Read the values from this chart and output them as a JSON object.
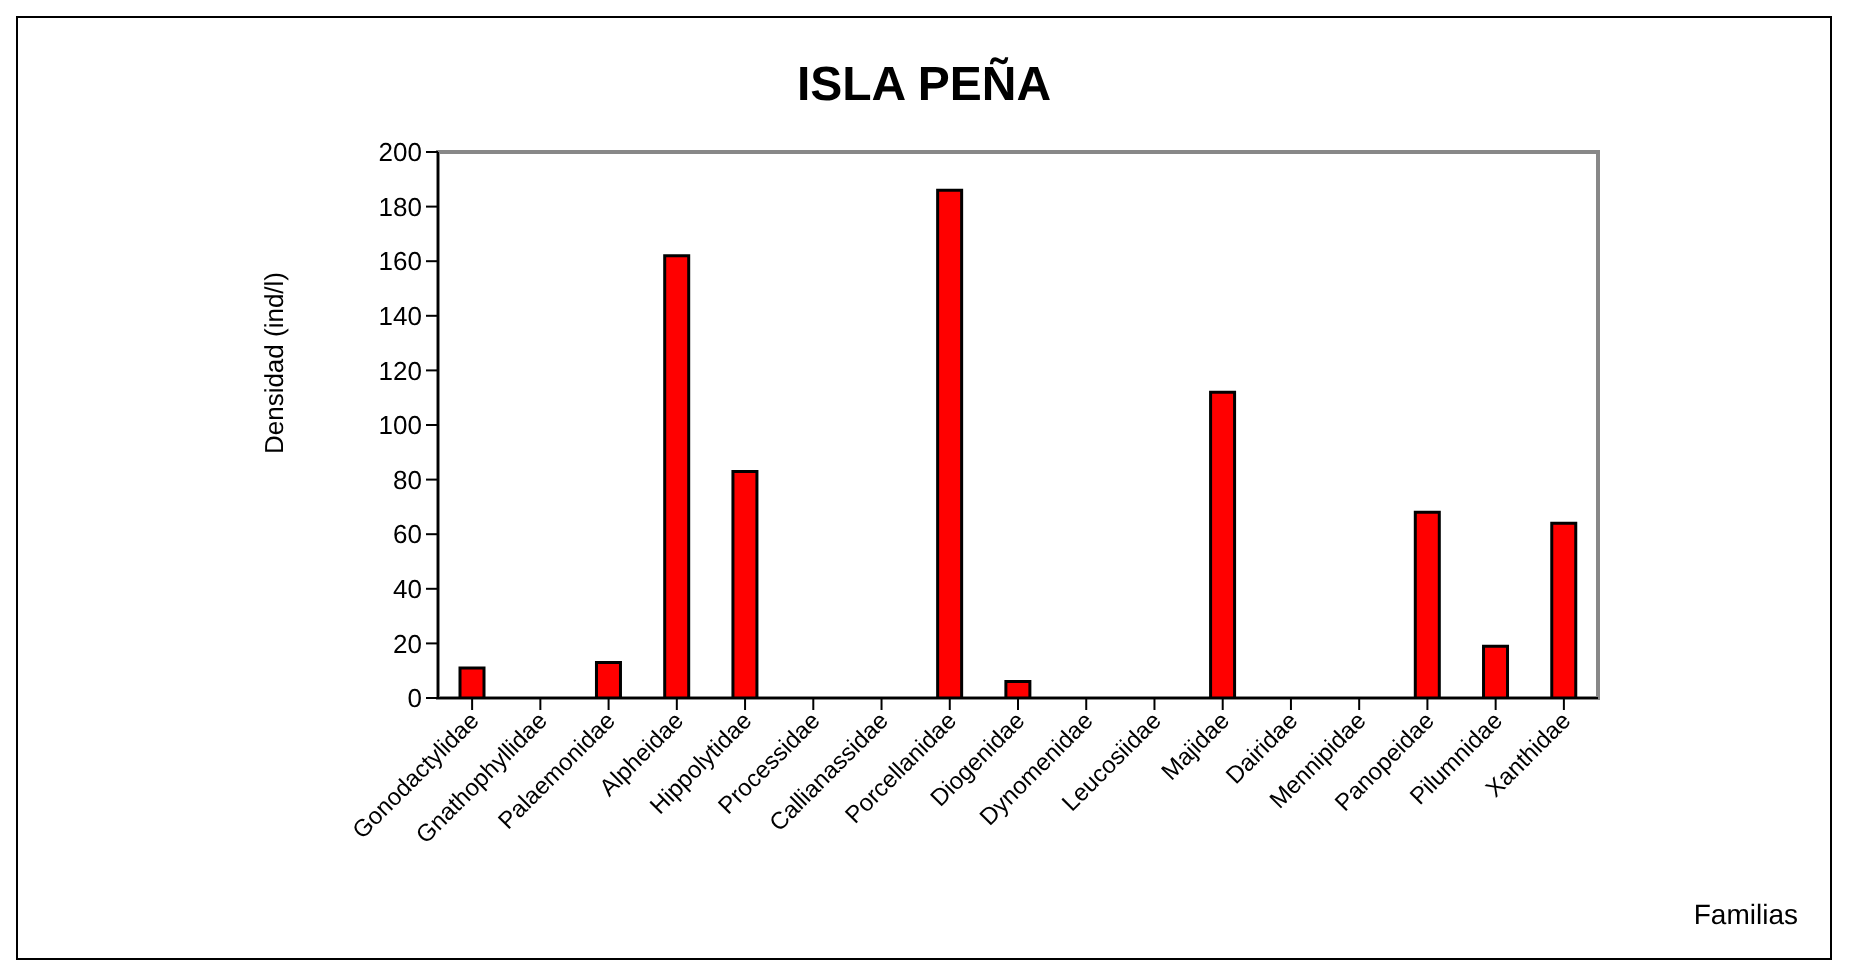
{
  "chart_data": {
    "type": "bar",
    "title": "ISLA PEÑA",
    "xlabel": "Familias",
    "ylabel": "Densidad (ind/l)",
    "categories": [
      "Gonodactylidae",
      "Gnathophyllidae",
      "Palaemonidae",
      "Alpheidae",
      "Hippolytidae",
      "Processidae",
      "Callianassidae",
      "Porcellanidae",
      "Diogenidae",
      "Dynomenidae",
      "Leucosiidae",
      "Majidae",
      "Dairidae",
      "Mennipidae",
      "Panopeidae",
      "Pilumnidae",
      "Xanthidae"
    ],
    "values": [
      11,
      0,
      13,
      162,
      83,
      0,
      0,
      186,
      6,
      0,
      0,
      112,
      0,
      0,
      68,
      19,
      64
    ],
    "color": "#ff0000",
    "ylim": [
      0,
      200
    ],
    "yticks": [
      0,
      20,
      40,
      60,
      80,
      100,
      120,
      140,
      160,
      180,
      200
    ],
    "grid": false,
    "legend": false
  }
}
